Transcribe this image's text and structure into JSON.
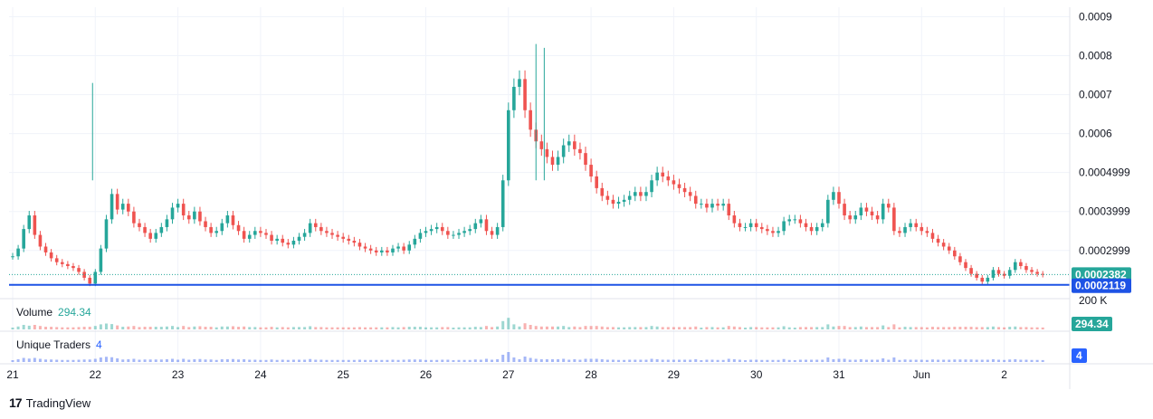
{
  "chart_data": {
    "type": "candlestick",
    "price_axis_ticks": [
      "0.0009",
      "0.0008",
      "0.0007",
      "0.0006",
      "0.0004999",
      "0.0003999",
      "0.0002999"
    ],
    "time_axis_ticks": [
      "21",
      "22",
      "23",
      "24",
      "25",
      "26",
      "27",
      "28",
      "29",
      "30",
      "31",
      "Jun",
      "2"
    ],
    "last_price_label": "0.0002382",
    "last_price": 0.0002382,
    "line_level_label": "0.0002119",
    "line_level": 0.0002119,
    "ylim": [
      0.000188,
      0.000915
    ],
    "volume_axis_tick": "200 K",
    "up_color": "#26a69a",
    "down_color": "#ef5350",
    "line_color": "#1e53e5",
    "traders_color": "#5b7cf0",
    "candles": [
      {
        "day": "21",
        "points": [
          0.000285,
          0.000305,
          0.000355,
          0.00039,
          0.00034,
          0.00031,
          0.000295,
          0.00028,
          0.00027,
          0.000265,
          0.00026,
          0.000255,
          0.000245,
          0.00023,
          0.000215
        ]
      },
      {
        "day": "22",
        "points": [
          0.000245,
          0.000305,
          0.00038,
          0.000445,
          0.000405,
          0.00042,
          0.0004,
          0.00037,
          0.00036,
          0.000345,
          0.00033,
          0.000345,
          0.00036,
          0.00038,
          0.00041
        ]
      },
      {
        "day": "23",
        "points": [
          0.00042,
          0.00039,
          0.00038,
          0.0004,
          0.000375,
          0.00036,
          0.000345,
          0.00035,
          0.00037,
          0.00039,
          0.000365,
          0.00035,
          0.00033,
          0.00034,
          0.00035
        ]
      },
      {
        "day": "24",
        "points": [
          0.000345,
          0.00034,
          0.000325,
          0.00033,
          0.00032,
          0.000315,
          0.000325,
          0.000335,
          0.000345,
          0.00037,
          0.00036,
          0.00035,
          0.000345,
          0.00034,
          0.000335
        ]
      },
      {
        "day": "25",
        "points": [
          0.00033,
          0.000325,
          0.00032,
          0.00031,
          0.000305,
          0.0003,
          0.000295,
          0.0003,
          0.000295,
          0.000305,
          0.00031,
          0.0003,
          0.000315,
          0.00033,
          0.000345
        ]
      },
      {
        "day": "26",
        "points": [
          0.00035,
          0.000355,
          0.00036,
          0.00035,
          0.00034,
          0.00034,
          0.000345,
          0.00035,
          0.000355,
          0.00037,
          0.00038,
          0.00035,
          0.00034,
          0.00036,
          0.00048
        ]
      },
      {
        "day": "27",
        "points": [
          0.00066,
          0.00072,
          0.00074,
          0.00066,
          0.00061,
          0.00058,
          0.00056,
          0.00054,
          0.00052,
          0.00054,
          0.00057,
          0.00058,
          0.00056,
          0.00055,
          0.00052
        ]
      },
      {
        "day": "28",
        "points": [
          0.00049,
          0.00046,
          0.00044,
          0.00043,
          0.00042,
          0.000425,
          0.00043,
          0.00044,
          0.00045,
          0.00044,
          0.00045,
          0.00048,
          0.0005,
          0.00049,
          0.00048
        ]
      },
      {
        "day": "29",
        "points": [
          0.00047,
          0.00046,
          0.00045,
          0.00044,
          0.00042,
          0.00042,
          0.00041,
          0.00042,
          0.000415,
          0.00042,
          0.00039,
          0.00037,
          0.00036,
          0.00036,
          0.00037
        ]
      },
      {
        "day": "30",
        "points": [
          0.00036,
          0.000355,
          0.00035,
          0.000345,
          0.00035,
          0.000375,
          0.00038,
          0.00038,
          0.00037,
          0.00036,
          0.00035,
          0.00036,
          0.00037,
          0.00043,
          0.00045
        ]
      },
      {
        "day": "31",
        "points": [
          0.00042,
          0.00039,
          0.00038,
          0.00039,
          0.00041,
          0.0004,
          0.00039,
          0.00038,
          0.00042,
          0.00041,
          0.00035,
          0.000345,
          0.00036,
          0.00037,
          0.00036
        ]
      },
      {
        "day": "Jun",
        "points": [
          0.00035,
          0.000345,
          0.00033,
          0.00032,
          0.00031,
          0.0003,
          0.000285,
          0.00027,
          0.000255,
          0.00024,
          0.00023,
          0.00022,
          0.00023,
          0.00025,
          0.00024
        ]
      },
      {
        "day": "2",
        "points": [
          0.000235,
          0.00025,
          0.00027,
          0.00026,
          0.00025,
          0.000245,
          0.00024,
          0.000238
        ]
      }
    ],
    "spikes": [
      {
        "day": "22",
        "high": 0.00073
      },
      {
        "day": "27",
        "high": 0.00083
      },
      {
        "day": "27",
        "high": 0.00082
      }
    ]
  },
  "volume_pane": {
    "title": "Volume",
    "value": "294.34",
    "badge": "294.34",
    "badge_color": "#26a69a"
  },
  "traders_pane": {
    "title": "Unique Traders",
    "value": "4",
    "badge": "4",
    "badge_color": "#2962ff"
  },
  "brand": {
    "logo": "17",
    "name": "TradingView"
  }
}
